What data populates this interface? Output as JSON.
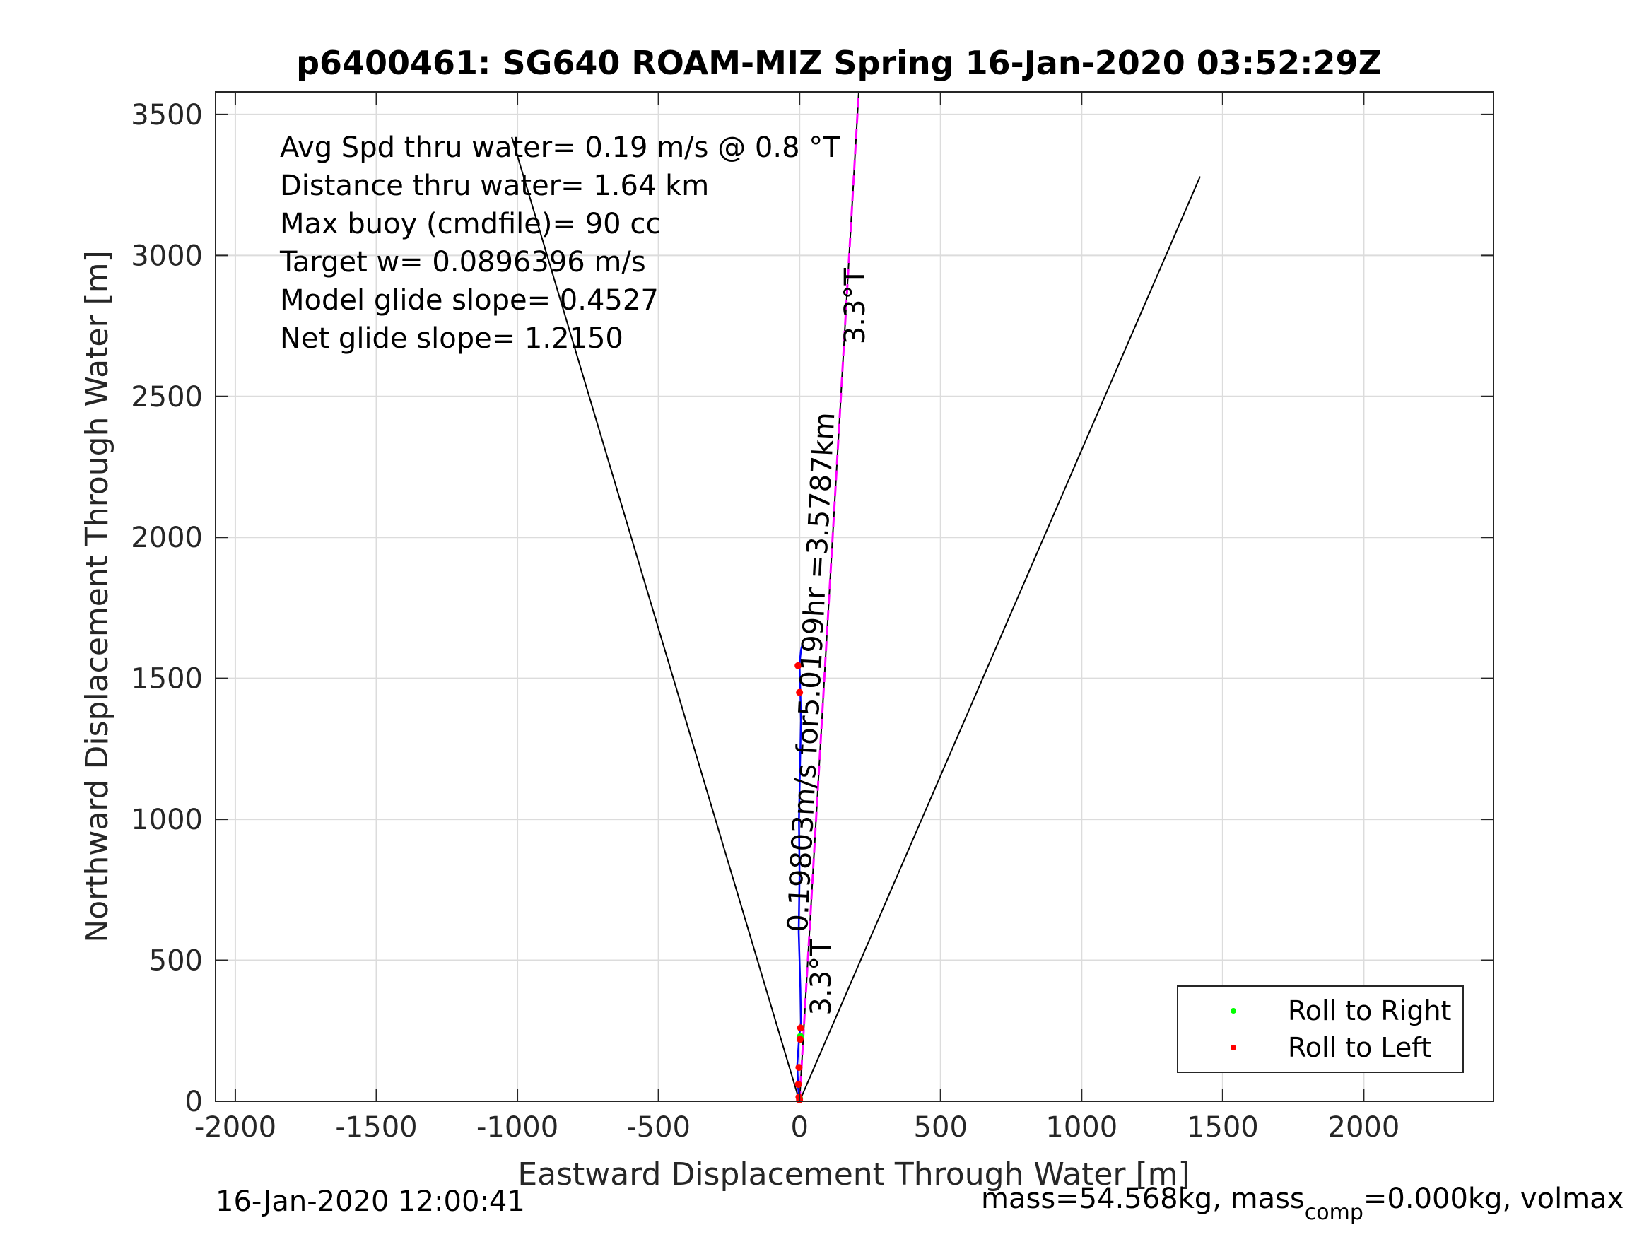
{
  "chart_data": {
    "type": "line",
    "title": "p6400461: SG640 ROAM-MIZ Spring 16-Jan-2020 03:52:29Z",
    "xlabel": "Eastward Displacement Through Water [m]",
    "ylabel": "Northward Displacement Through Water [m]",
    "xlim": [
      -2070,
      2460
    ],
    "ylim": [
      0,
      3580
    ],
    "xticks": [
      -2000,
      -1500,
      -1000,
      -500,
      0,
      500,
      1000,
      1500,
      2000
    ],
    "yticks": [
      0,
      500,
      1000,
      1500,
      2000,
      2500,
      3000,
      3500
    ],
    "grid": true,
    "legend_position": "bottom-right",
    "legend": [
      {
        "label": "Roll to Right",
        "color": "#00ff00"
      },
      {
        "label": "Roll to Left",
        "color": "#ff0000"
      }
    ],
    "info_lines": [
      "Avg Spd thru water=  0.19 m/s @   0.8  °T",
      "Distance thru water=  1.64 km",
      "Max buoy (cmdfile)= 90 cc",
      "Target w= 0.0896396 m/s",
      "Model glide slope= 0.4527",
      "Net glide slope= 1.2150"
    ],
    "cone_lines": [
      {
        "name": "left-cone",
        "x": [
          0,
          -1020
        ],
        "y": [
          0,
          3420
        ]
      },
      {
        "name": "right-cone",
        "x": [
          0,
          1420
        ],
        "y": [
          0,
          3280
        ]
      },
      {
        "name": "heading-line",
        "x": [
          0,
          210
        ],
        "y": [
          0,
          3580
        ]
      }
    ],
    "target_line": {
      "x": [
        0,
        210
      ],
      "y": [
        0,
        3580
      ],
      "color": "#ff00ff"
    },
    "track": {
      "color": "#0000ff",
      "x": [
        0,
        -5,
        -8,
        -2,
        5,
        3,
        -3,
        0,
        -2,
        2,
        5,
        3,
        0,
        5,
        10
      ],
      "y": [
        0,
        50,
        130,
        220,
        280,
        400,
        600,
        800,
        1000,
        1200,
        1350,
        1450,
        1550,
        1600,
        1620
      ]
    },
    "roll_left_points": {
      "x": [
        0,
        -2,
        -4,
        -2,
        2,
        4,
        0,
        -5
      ],
      "y": [
        5,
        15,
        60,
        120,
        220,
        260,
        1450,
        1545
      ]
    },
    "roll_right_points": {
      "x": [
        0,
        3
      ],
      "y": [
        10,
        230
      ]
    },
    "line_labels": [
      {
        "text": "3.3°T",
        "x": 230,
        "y": 2820,
        "rotate": -90
      },
      {
        "text": "3.3°T",
        "x": 110,
        "y": 440,
        "rotate": -90
      },
      {
        "text": "0.19803m/s for5.0199hr =3.5787km",
        "x": 75,
        "y": 1520,
        "rotate": -87
      }
    ],
    "footer_left": "16-Jan-2020 12:00:41",
    "footer_right_parts": [
      "mass=54.568kg, mass",
      "comp",
      "=0.000kg, volmax"
    ]
  }
}
